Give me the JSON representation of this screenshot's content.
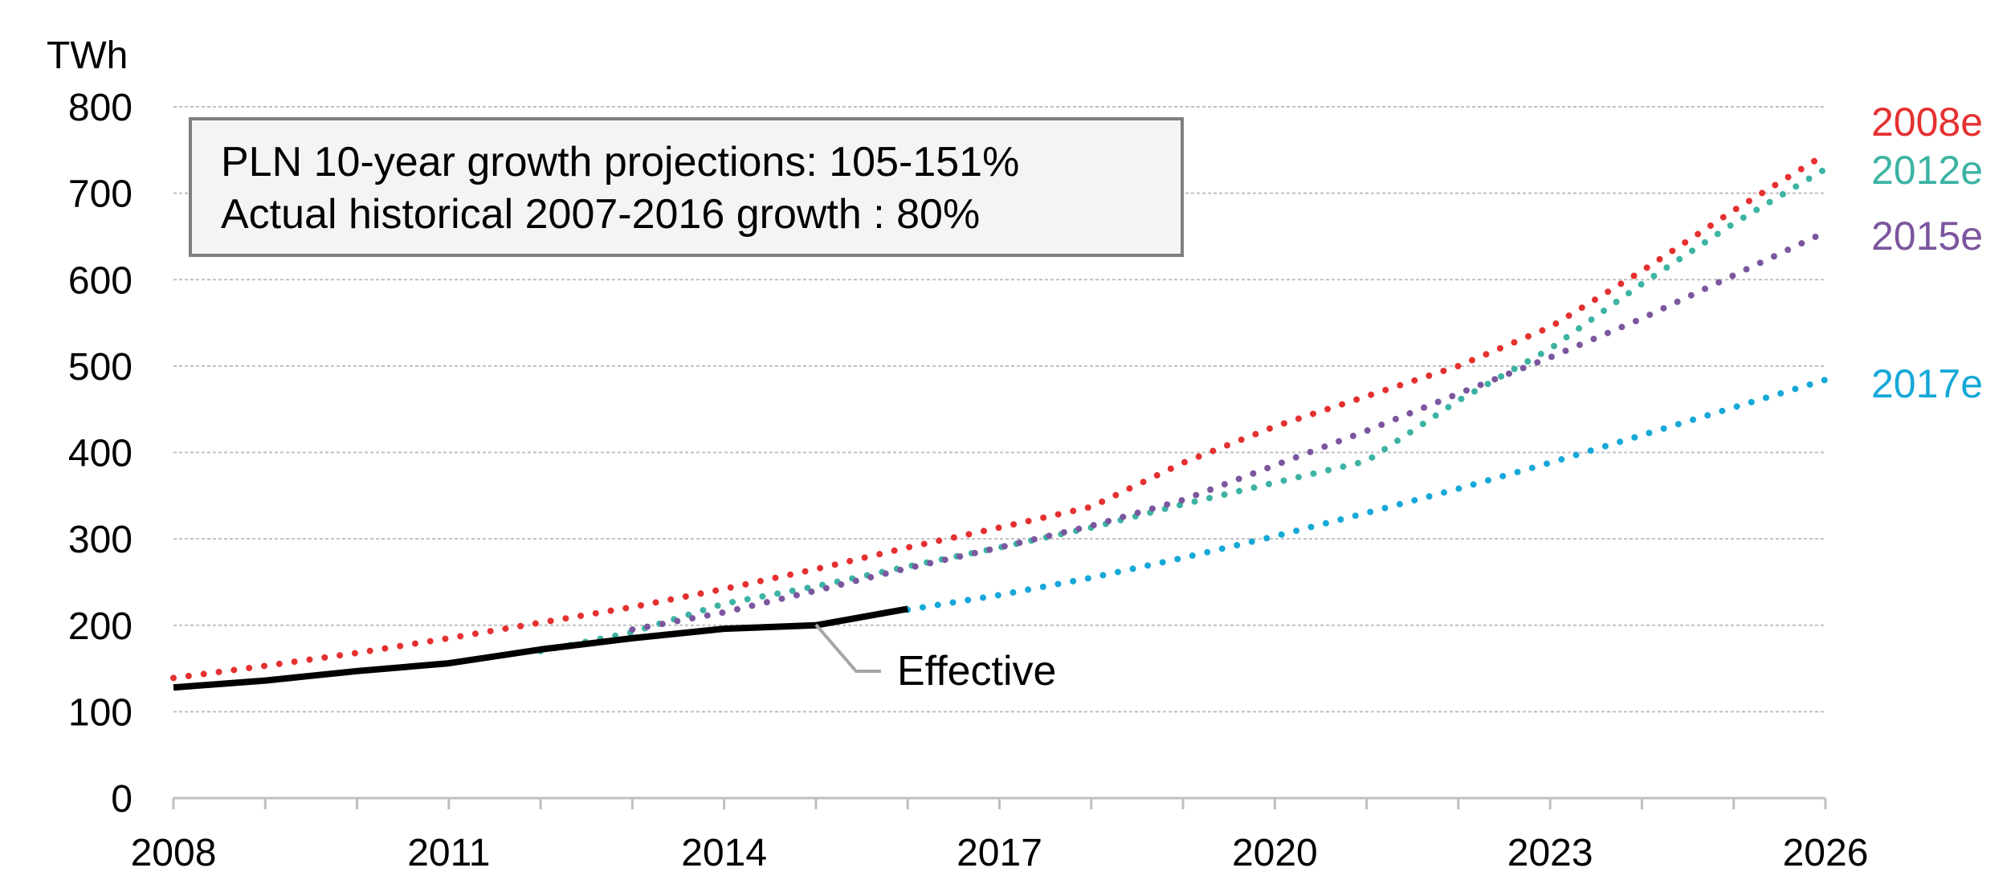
{
  "chart_data": {
    "type": "line",
    "unit_label": "TWh",
    "ylim": [
      0,
      800
    ],
    "y_ticks": [
      0,
      100,
      200,
      300,
      400,
      500,
      600,
      700,
      800
    ],
    "xlim": [
      2008,
      2026
    ],
    "x_tick_labels": [
      2008,
      2011,
      2014,
      2017,
      2020,
      2023,
      2026
    ],
    "grid": true,
    "annotation_box": {
      "line1": "PLN 10-year growth projections: 105-151%",
      "line2": "Actual historical 2007-2016 growth : 80%"
    },
    "series": [
      {
        "name": "2008e",
        "style": "dotted",
        "color": "#e53030",
        "points": [
          [
            2008,
            139
          ],
          [
            2009,
            153
          ],
          [
            2010,
            168
          ],
          [
            2011,
            185
          ],
          [
            2012,
            203
          ],
          [
            2013,
            221
          ],
          [
            2014,
            242
          ],
          [
            2015,
            265
          ],
          [
            2016,
            290
          ],
          [
            2017,
            313
          ],
          [
            2018,
            337
          ],
          [
            2019,
            388
          ],
          [
            2020,
            430
          ],
          [
            2021,
            465
          ],
          [
            2022,
            500
          ],
          [
            2023,
            545
          ],
          [
            2024,
            610
          ],
          [
            2025,
            680
          ],
          [
            2026,
            745
          ]
        ]
      },
      {
        "name": "2012e",
        "style": "dotted",
        "color": "#3cb3a3",
        "points": [
          [
            2012,
            170
          ],
          [
            2013,
            192
          ],
          [
            2014,
            225
          ],
          [
            2015,
            245
          ],
          [
            2016,
            268
          ],
          [
            2017,
            290
          ],
          [
            2018,
            313
          ],
          [
            2019,
            340
          ],
          [
            2020,
            365
          ],
          [
            2021,
            390
          ],
          [
            2022,
            460
          ],
          [
            2023,
            520
          ],
          [
            2024,
            595
          ],
          [
            2025,
            665
          ],
          [
            2026,
            728
          ]
        ]
      },
      {
        "name": "2015e",
        "style": "dotted",
        "color": "#7b569e",
        "points": [
          [
            2013,
            195
          ],
          [
            2014,
            215
          ],
          [
            2015,
            240
          ],
          [
            2016,
            266
          ],
          [
            2017,
            290
          ],
          [
            2018,
            315
          ],
          [
            2019,
            345
          ],
          [
            2020,
            385
          ],
          [
            2021,
            425
          ],
          [
            2022,
            468
          ],
          [
            2023,
            510
          ],
          [
            2024,
            555
          ],
          [
            2025,
            605
          ],
          [
            2026,
            655
          ]
        ]
      },
      {
        "name": "2017e",
        "style": "dotted",
        "color": "#16a8d8",
        "points": [
          [
            2016,
            218
          ],
          [
            2017,
            235
          ],
          [
            2018,
            255
          ],
          [
            2019,
            278
          ],
          [
            2020,
            303
          ],
          [
            2021,
            330
          ],
          [
            2022,
            358
          ],
          [
            2023,
            388
          ],
          [
            2024,
            420
          ],
          [
            2025,
            452
          ],
          [
            2026,
            484
          ]
        ]
      },
      {
        "name": "Effective",
        "style": "solid",
        "color": "#000000",
        "points": [
          [
            2008,
            128
          ],
          [
            2009,
            136
          ],
          [
            2010,
            147
          ],
          [
            2011,
            156
          ],
          [
            2012,
            172
          ],
          [
            2013,
            185
          ],
          [
            2014,
            196
          ],
          [
            2015,
            200
          ],
          [
            2016,
            219
          ]
        ]
      }
    ]
  }
}
